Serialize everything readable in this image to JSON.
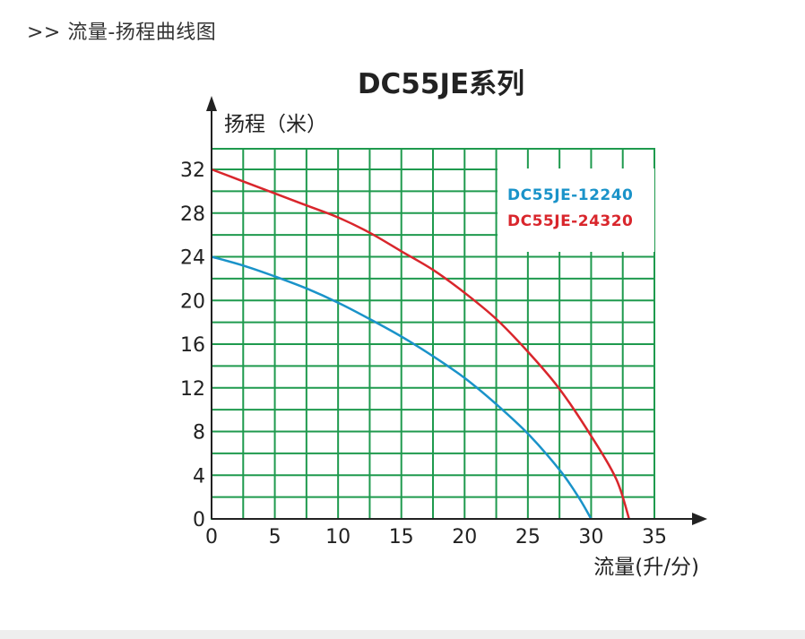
{
  "section_header": ">> 流量-扬程曲线图",
  "chart_data": {
    "type": "line",
    "title": "DC55JE系列",
    "xlabel": "流量(升/分)",
    "ylabel": "扬程（米）",
    "xlim": [
      0,
      35
    ],
    "ylim": [
      0,
      32
    ],
    "x_ticks": [
      "0",
      "5",
      "10",
      "15",
      "20",
      "25",
      "30",
      "35"
    ],
    "y_ticks": [
      "0",
      "4",
      "8",
      "12",
      "16",
      "20",
      "24",
      "28",
      "32"
    ],
    "grid": true,
    "legend_position": "top-right",
    "series": [
      {
        "name": "DC55JE-12240",
        "color": "#1a93c9",
        "x": [
          0,
          2.5,
          5,
          7.5,
          10,
          12.5,
          15,
          17.5,
          20,
          22.5,
          25,
          27.5,
          29,
          30
        ],
        "y": [
          24,
          23.2,
          22.2,
          21.1,
          19.8,
          18.3,
          16.7,
          14.9,
          12.9,
          10.5,
          7.8,
          4.5,
          2.0,
          0
        ]
      },
      {
        "name": "DC55JE-24320",
        "color": "#d9262c",
        "x": [
          0,
          2.5,
          5,
          7.5,
          10,
          12.5,
          15,
          17.5,
          20,
          22.5,
          25,
          27.5,
          30,
          32,
          33
        ],
        "y": [
          32,
          30.9,
          29.8,
          28.7,
          27.6,
          26.2,
          24.5,
          22.8,
          20.7,
          18.3,
          15.3,
          11.9,
          7.6,
          3.6,
          0
        ]
      }
    ]
  }
}
